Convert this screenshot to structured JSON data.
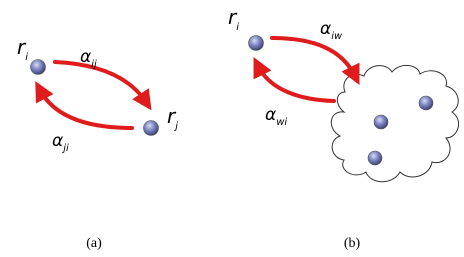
{
  "panels": [
    {
      "caption": "(a)",
      "labels": [
        {
          "base": "r",
          "sub": "i"
        },
        {
          "base": "α",
          "sub": "ij"
        },
        {
          "base": "r",
          "sub": "j"
        },
        {
          "base": "α",
          "sub": "ji"
        }
      ]
    },
    {
      "caption": "(b)",
      "labels": [
        {
          "base": "r",
          "sub": "i"
        },
        {
          "base": "α",
          "sub": "iw"
        },
        {
          "base": "α",
          "sub": "wi"
        }
      ]
    }
  ]
}
